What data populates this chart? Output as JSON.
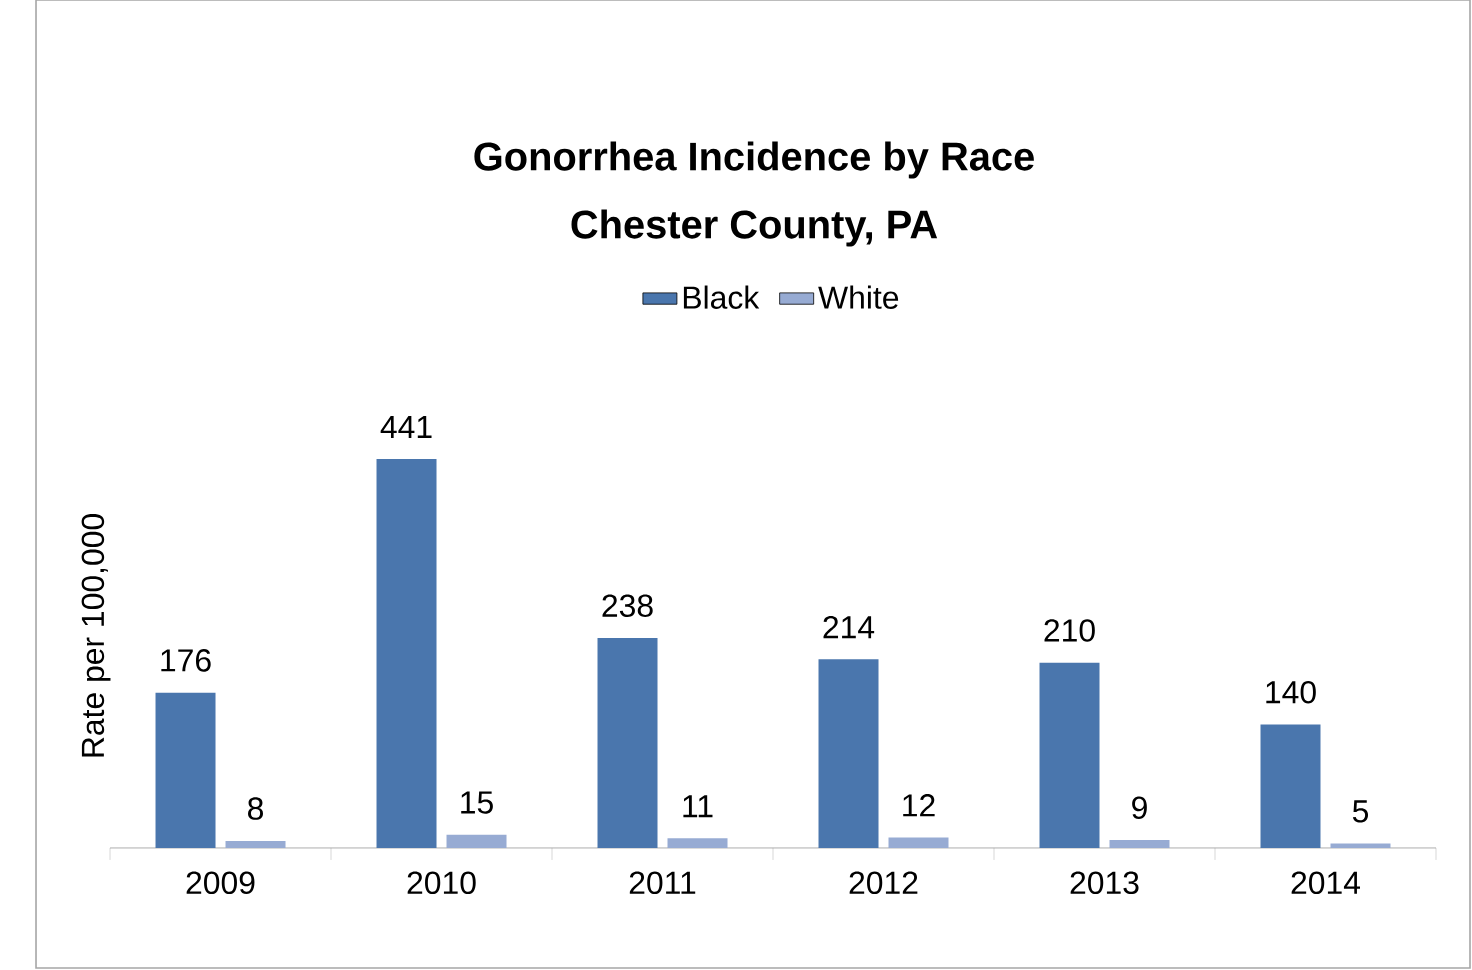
{
  "chart_data": {
    "type": "bar",
    "title": "Gonorrhea Incidence by Race",
    "subtitle": "Chester County, PA",
    "ylabel": "Rate per 100,000",
    "categories": [
      "2009",
      "2010",
      "2011",
      "2012",
      "2013",
      "2014"
    ],
    "series": [
      {
        "name": "Black",
        "color": "#4a76ad",
        "values": [
          176,
          441,
          238,
          214,
          210,
          140
        ]
      },
      {
        "name": "White",
        "color": "#97abd3",
        "values": [
          8,
          15,
          11,
          12,
          9,
          5
        ]
      }
    ],
    "data_labels": true,
    "legend": "top"
  }
}
